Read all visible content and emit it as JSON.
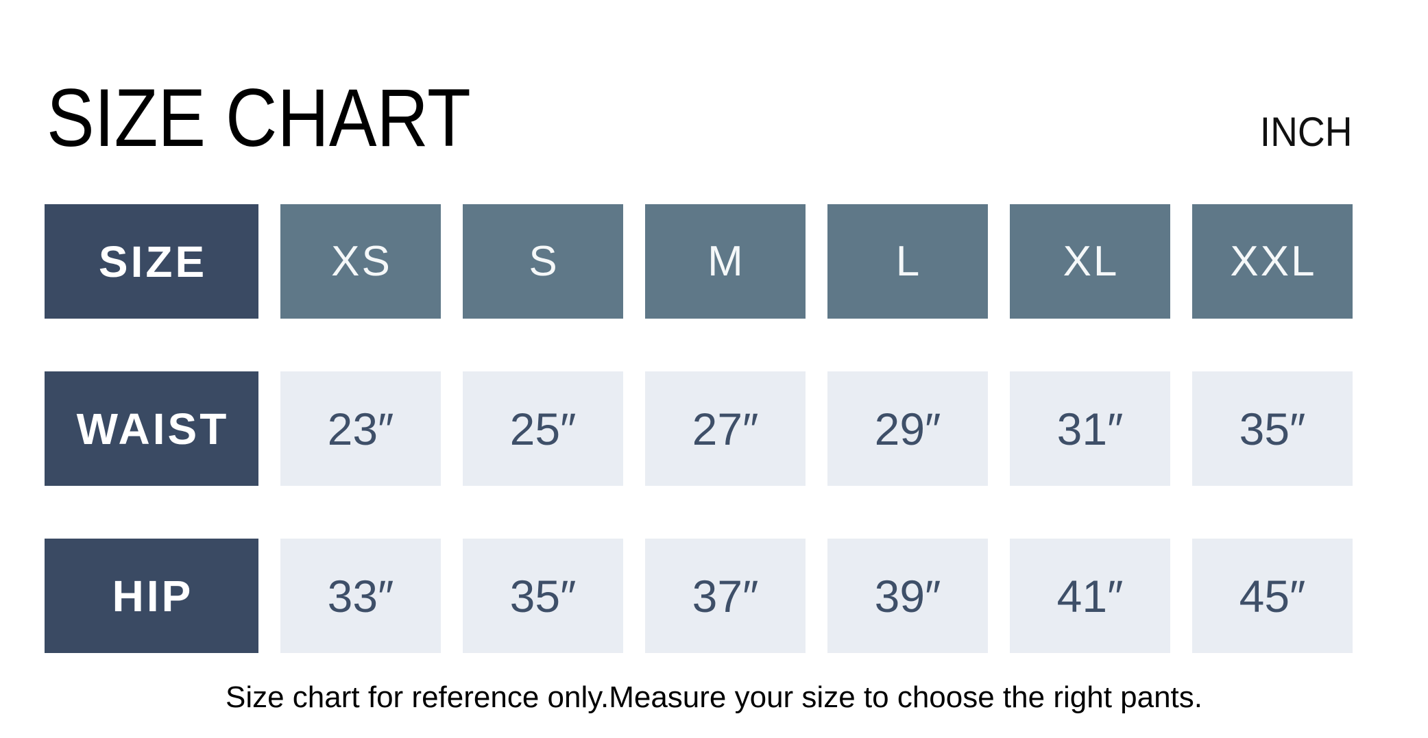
{
  "page": {
    "title": "SIZE CHART",
    "unit": "INCH",
    "footnote": "Size chart for reference only.Measure your size to choose the right pants."
  },
  "colors": {
    "row_label_bg": "#3a4a63",
    "size_header_bg": "#5f7888",
    "value_cell_bg": "#e9edf3",
    "value_text": "#3e4f68",
    "size_text": "#f5f8f9",
    "header_text": "#ffffff"
  },
  "table": {
    "header_row": {
      "label": "SIZE",
      "sizes": [
        "XS",
        "S",
        "M",
        "L",
        "XL",
        "XXL"
      ]
    },
    "rows": [
      {
        "label": "WAIST",
        "values": [
          "23″",
          "25″",
          "27″",
          "29″",
          "31″",
          "35″"
        ]
      },
      {
        "label": "HIP",
        "values": [
          "33″",
          "35″",
          "37″",
          "39″",
          "41″",
          "45″"
        ]
      }
    ]
  },
  "chart_data": {
    "type": "table",
    "title": "SIZE CHART",
    "unit": "INCH",
    "columns": [
      "SIZE",
      "XS",
      "S",
      "M",
      "L",
      "XL",
      "XXL"
    ],
    "rows": [
      [
        "WAIST",
        23,
        25,
        27,
        29,
        31,
        35
      ],
      [
        "HIP",
        33,
        35,
        37,
        39,
        41,
        45
      ]
    ],
    "footnote": "Size chart for reference only.Measure your size to choose the right pants."
  }
}
